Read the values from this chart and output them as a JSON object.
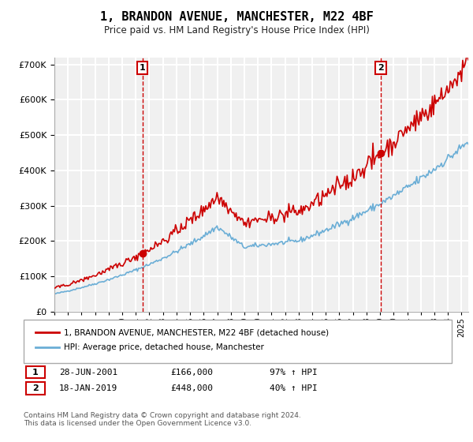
{
  "title": "1, BRANDON AVENUE, MANCHESTER, M22 4BF",
  "subtitle": "Price paid vs. HM Land Registry's House Price Index (HPI)",
  "ylim": [
    0,
    720000
  ],
  "yticks": [
    0,
    100000,
    200000,
    300000,
    400000,
    500000,
    600000,
    700000
  ],
  "hpi_color": "#6baed6",
  "property_color": "#cc0000",
  "sale1_date": "28-JUN-2001",
  "sale1_price": 166000,
  "sale1_hpi": "97% ↑ HPI",
  "sale2_date": "18-JAN-2019",
  "sale2_price": 448000,
  "sale2_hpi": "40% ↑ HPI",
  "legend_property": "1, BRANDON AVENUE, MANCHESTER, M22 4BF (detached house)",
  "legend_hpi": "HPI: Average price, detached house, Manchester",
  "footnote": "Contains HM Land Registry data © Crown copyright and database right 2024.\nThis data is licensed under the Open Government Licence v3.0.",
  "sale1_x": 2001.49,
  "sale2_x": 2019.05,
  "background_color": "#f0f0f0",
  "grid_color": "#ffffff"
}
